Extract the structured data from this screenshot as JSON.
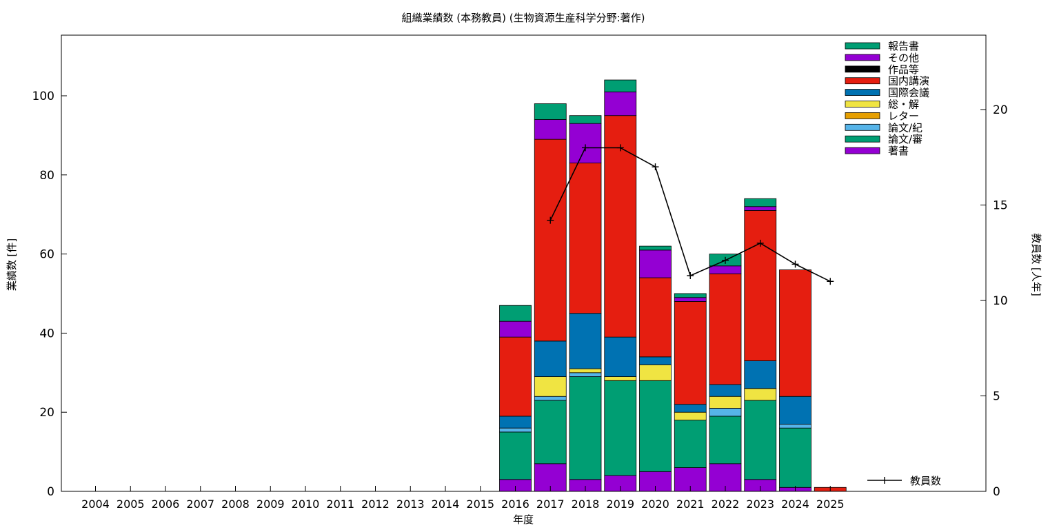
{
  "chart_data": {
    "type": "bar",
    "stacked": true,
    "title": "組織業績数 (本務教員) (生物資源生産科学分野:著作)",
    "xlabel": "年度",
    "ylabel": "業績数 [件]",
    "y2label": "教員数 [人年]",
    "ylim": [
      0,
      115
    ],
    "y2lim": [
      0,
      23.96
    ],
    "yticks": [
      0,
      20,
      40,
      60,
      80,
      100
    ],
    "y2ticks": [
      0,
      5,
      10,
      15,
      20
    ],
    "grid": false,
    "legend_position": "top-right",
    "categories": [
      "2004",
      "2005",
      "2006",
      "2007",
      "2008",
      "2009",
      "2010",
      "2011",
      "2012",
      "2013",
      "2014",
      "2015",
      "2016",
      "2017",
      "2018",
      "2019",
      "2020",
      "2021",
      "2022",
      "2023",
      "2024",
      "2025"
    ],
    "series": [
      {
        "name": "著書",
        "color": "#9400d3",
        "values": [
          0,
          0,
          0,
          0,
          0,
          0,
          0,
          0,
          0,
          0,
          0,
          0,
          3,
          7,
          3,
          4,
          5,
          6,
          7,
          3,
          1,
          0
        ]
      },
      {
        "name": "論文/審",
        "color": "#009e73",
        "values": [
          0,
          0,
          0,
          0,
          0,
          0,
          0,
          0,
          0,
          0,
          0,
          0,
          12,
          16,
          26,
          24,
          23,
          12,
          12,
          20,
          15,
          0
        ]
      },
      {
        "name": "論文/紀",
        "color": "#56b4e9",
        "values": [
          0,
          0,
          0,
          0,
          0,
          0,
          0,
          0,
          0,
          0,
          0,
          0,
          1,
          1,
          1,
          0,
          0,
          0,
          2,
          0,
          1,
          0
        ]
      },
      {
        "name": "レター",
        "color": "#e69f00",
        "values": [
          0,
          0,
          0,
          0,
          0,
          0,
          0,
          0,
          0,
          0,
          0,
          0,
          0,
          0,
          0,
          0,
          0,
          0,
          0,
          0,
          0,
          0
        ]
      },
      {
        "name": "総・解",
        "color": "#f0e442",
        "values": [
          0,
          0,
          0,
          0,
          0,
          0,
          0,
          0,
          0,
          0,
          0,
          0,
          0,
          5,
          1,
          1,
          4,
          2,
          3,
          3,
          0,
          0
        ]
      },
      {
        "name": "国際会議",
        "color": "#0072b2",
        "values": [
          0,
          0,
          0,
          0,
          0,
          0,
          0,
          0,
          0,
          0,
          0,
          0,
          3,
          9,
          14,
          10,
          2,
          2,
          3,
          7,
          7,
          0
        ]
      },
      {
        "name": "国内講演",
        "color": "#e51e10",
        "values": [
          0,
          0,
          0,
          0,
          0,
          0,
          0,
          0,
          0,
          0,
          0,
          0,
          20,
          51,
          38,
          56,
          20,
          26,
          28,
          38,
          32,
          1
        ]
      },
      {
        "name": "作品等",
        "color": "#000000",
        "values": [
          0,
          0,
          0,
          0,
          0,
          0,
          0,
          0,
          0,
          0,
          0,
          0,
          0,
          0,
          0,
          0,
          0,
          0,
          0,
          0,
          0,
          0
        ]
      },
      {
        "name": "その他",
        "color": "#9400d3",
        "values": [
          0,
          0,
          0,
          0,
          0,
          0,
          0,
          0,
          0,
          0,
          0,
          0,
          4,
          5,
          10,
          6,
          7,
          1,
          2,
          1,
          0,
          0
        ]
      },
      {
        "name": "報告書",
        "color": "#009e73",
        "values": [
          0,
          0,
          0,
          0,
          0,
          0,
          0,
          0,
          0,
          0,
          0,
          0,
          4,
          4,
          2,
          3,
          1,
          1,
          3,
          2,
          0,
          0
        ]
      }
    ],
    "line_series": {
      "name": "教員数",
      "color": "#000000",
      "x": [
        "2017",
        "2018",
        "2019",
        "2020",
        "2021",
        "2022",
        "2023",
        "2024",
        "2025"
      ],
      "values": [
        14.2,
        18,
        18,
        17,
        11.3,
        12.1,
        13,
        11.9,
        11
      ]
    }
  }
}
